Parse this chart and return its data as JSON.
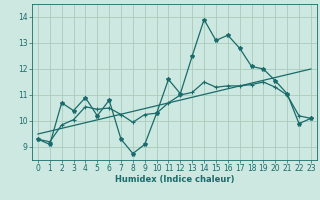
{
  "xlabel": "Humidex (Indice chaleur)",
  "background_color": "#cce8e0",
  "grid_color": "#aaccbb",
  "line_color": "#1a6b6b",
  "xlim": [
    -0.5,
    23.5
  ],
  "ylim": [
    8.5,
    14.5
  ],
  "xticks": [
    0,
    1,
    2,
    3,
    4,
    5,
    6,
    7,
    8,
    9,
    10,
    11,
    12,
    13,
    14,
    15,
    16,
    17,
    18,
    19,
    20,
    21,
    22,
    23
  ],
  "yticks": [
    9,
    10,
    11,
    12,
    13,
    14
  ],
  "series1_x": [
    0,
    1,
    2,
    3,
    4,
    5,
    6,
    7,
    8,
    9,
    10,
    11,
    12,
    13,
    14,
    15,
    16,
    17,
    18,
    19,
    20,
    21,
    22,
    23
  ],
  "series1_y": [
    9.3,
    9.1,
    10.7,
    10.4,
    10.9,
    10.2,
    10.8,
    9.3,
    8.75,
    9.1,
    10.3,
    11.6,
    11.05,
    12.5,
    13.9,
    13.1,
    13.3,
    12.8,
    12.1,
    12.0,
    11.55,
    11.05,
    9.9,
    10.1
  ],
  "series2_x": [
    0,
    1,
    2,
    3,
    4,
    5,
    6,
    7,
    8,
    9,
    10,
    11,
    12,
    13,
    14,
    15,
    16,
    17,
    18,
    19,
    20,
    21,
    22,
    23
  ],
  "series2_y": [
    9.3,
    9.2,
    9.85,
    10.05,
    10.55,
    10.45,
    10.5,
    10.25,
    9.95,
    10.25,
    10.3,
    10.7,
    11.0,
    11.1,
    11.5,
    11.3,
    11.35,
    11.35,
    11.4,
    11.5,
    11.3,
    11.0,
    10.2,
    10.1
  ],
  "series3_x": [
    0,
    23
  ],
  "series3_y": [
    9.5,
    12.0
  ]
}
